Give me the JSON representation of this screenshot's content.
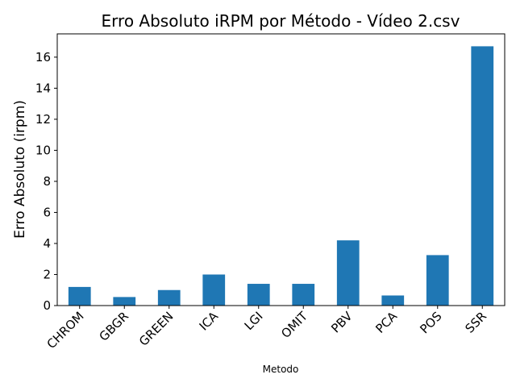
{
  "chart_data": {
    "type": "bar",
    "title": "Erro Absoluto iRPM por Método - Vídeo 2.csv",
    "xlabel": "Metodo",
    "ylabel": "Erro Absoluto (irpm)",
    "categories": [
      "CHROM",
      "GBGR",
      "GREEN",
      "ICA",
      "LGI",
      "OMIT",
      "PBV",
      "PCA",
      "POS",
      "SSR"
    ],
    "values": [
      1.2,
      0.55,
      1.0,
      2.0,
      1.4,
      1.4,
      4.2,
      0.65,
      3.25,
      16.7
    ],
    "ylim": [
      0,
      17.5
    ],
    "yticks": [
      0,
      2,
      4,
      6,
      8,
      10,
      12,
      14,
      16
    ],
    "ytick_labels": [
      "0",
      "2",
      "4",
      "6",
      "8",
      "10",
      "12",
      "14",
      "16"
    ],
    "bar_color": "#1f77b4",
    "grid": false,
    "legend": "none"
  }
}
